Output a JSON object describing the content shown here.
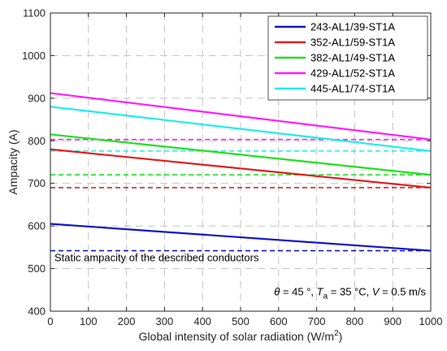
{
  "chart_data": {
    "type": "line",
    "xlabel": "Global intensity of solar radiation (W/m",
    "xlabel_sup": "2",
    "xlabel_end": ")",
    "ylabel": "Ampacity (A)",
    "xlim": [
      0,
      1000
    ],
    "ylim": [
      400,
      1100
    ],
    "xticks": [
      0,
      100,
      200,
      300,
      400,
      500,
      600,
      700,
      800,
      900,
      1000
    ],
    "yticks": [
      400,
      500,
      600,
      700,
      800,
      900,
      1000,
      1100
    ],
    "x": [
      0,
      1000
    ],
    "series": [
      {
        "name": "243-AL1/39-ST1A",
        "color": "#1414c8",
        "values": [
          605,
          542
        ],
        "static": 542
      },
      {
        "name": "352-AL1/59-ST1A",
        "color": "#e01e1e",
        "values": [
          780,
          690
        ],
        "static": 690
      },
      {
        "name": "382-AL1/49-ST1A",
        "color": "#20e020",
        "values": [
          815,
          720
        ],
        "static": 720
      },
      {
        "name": "429-AL1/52-ST1A",
        "color": "#ff1eff",
        "values": [
          912,
          803
        ],
        "static": 803
      },
      {
        "name": "445-AL1/74-ST1A",
        "color": "#20ecec",
        "values": [
          880,
          776
        ],
        "static": 776
      }
    ],
    "static_label": "Static ampacity of the described conductors",
    "conditions": {
      "theta_symbol": "θ",
      "theta_text": " = 45 °, ",
      "ta_symbol": "T",
      "ta_sub": "a",
      "ta_text": " = 35 °C, ",
      "v_symbol": "V",
      "v_text": " = 0.5 m/s"
    },
    "legend_position": "top-right",
    "grid": true
  }
}
